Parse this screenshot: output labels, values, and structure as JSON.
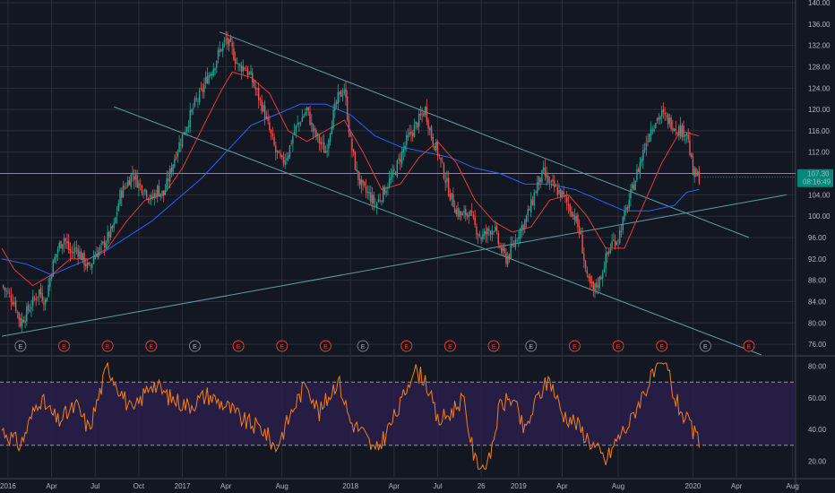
{
  "chart_data": [
    {
      "type": "candlestick",
      "panel": "price",
      "y_ticks": [
        76,
        80,
        84,
        88,
        92,
        96,
        100,
        104,
        108,
        112,
        116,
        120,
        124,
        128,
        132,
        136,
        140
      ],
      "y_tick_labels": [
        "76.00",
        "80.00",
        "84.00",
        "88.00",
        "92.00",
        "96.00",
        "100.00",
        "104.00",
        "108.00",
        "112.00",
        "116.00",
        "120.00",
        "124.00",
        "128.00",
        "132.00",
        "136.00",
        "140.00"
      ],
      "ylim": [
        74,
        140.5
      ],
      "current_price_label": "107.30",
      "countdown_label": "08:16:49",
      "current_price": 107.3,
      "close_path": [
        [
          0,
          87
        ],
        [
          2,
          84
        ],
        [
          3,
          80
        ],
        [
          4,
          82
        ],
        [
          5,
          84
        ],
        [
          6,
          86
        ],
        [
          7,
          84
        ],
        [
          8,
          90
        ],
        [
          9,
          94
        ],
        [
          10,
          96
        ],
        [
          11,
          93
        ],
        [
          12,
          94
        ],
        [
          13,
          92
        ],
        [
          14,
          90
        ],
        [
          15,
          93
        ],
        [
          16,
          94
        ],
        [
          17,
          96
        ],
        [
          18,
          98
        ],
        [
          19,
          104
        ],
        [
          20,
          106
        ],
        [
          21,
          108
        ],
        [
          22,
          106
        ],
        [
          23,
          105
        ],
        [
          24,
          103
        ],
        [
          25,
          105
        ],
        [
          26,
          104
        ],
        [
          27,
          108
        ],
        [
          28,
          112
        ],
        [
          29,
          115
        ],
        [
          30,
          118
        ],
        [
          31,
          121
        ],
        [
          32,
          123
        ],
        [
          33,
          126
        ],
        [
          34,
          128
        ],
        [
          35,
          131
        ],
        [
          36,
          133
        ],
        [
          37,
          131
        ],
        [
          38,
          128
        ],
        [
          39,
          128
        ],
        [
          40,
          126
        ],
        [
          41,
          123
        ],
        [
          42,
          120
        ],
        [
          43,
          116
        ],
        [
          44,
          112
        ],
        [
          45,
          110
        ],
        [
          46,
          112
        ],
        [
          47,
          116
        ],
        [
          48,
          118
        ],
        [
          49,
          120
        ],
        [
          50,
          116
        ],
        [
          51,
          114
        ],
        [
          52,
          112
        ],
        [
          53,
          118
        ],
        [
          54,
          122
        ],
        [
          55,
          124
        ],
        [
          56,
          114
        ],
        [
          57,
          108
        ],
        [
          58,
          105
        ],
        [
          59,
          104
        ],
        [
          60,
          102
        ],
        [
          61,
          104
        ],
        [
          62,
          106
        ],
        [
          63,
          108
        ],
        [
          64,
          111
        ],
        [
          65,
          114
        ],
        [
          66,
          116
        ],
        [
          67,
          118
        ],
        [
          68,
          120
        ],
        [
          69,
          115
        ],
        [
          70,
          112
        ],
        [
          71,
          108
        ],
        [
          72,
          104
        ],
        [
          73,
          101
        ],
        [
          74,
          100
        ],
        [
          75,
          101
        ],
        [
          76,
          98
        ],
        [
          77,
          96
        ],
        [
          78,
          97
        ],
        [
          79,
          98
        ],
        [
          80,
          94
        ],
        [
          81,
          92
        ],
        [
          82,
          94
        ],
        [
          83,
          97
        ],
        [
          84,
          99
        ],
        [
          85,
          102
        ],
        [
          86,
          106
        ],
        [
          87,
          108
        ],
        [
          88,
          106
        ],
        [
          89,
          105
        ],
        [
          90,
          104
        ],
        [
          91,
          102
        ],
        [
          92,
          100
        ],
        [
          93,
          96
        ],
        [
          94,
          88
        ],
        [
          95,
          86
        ],
        [
          96,
          88
        ],
        [
          97,
          92
        ],
        [
          98,
          95
        ],
        [
          99,
          96
        ],
        [
          100,
          100
        ],
        [
          101,
          104
        ],
        [
          102,
          108
        ],
        [
          103,
          112
        ],
        [
          104,
          116
        ],
        [
          105,
          118
        ],
        [
          106,
          119
        ],
        [
          107,
          118
        ],
        [
          108,
          117
        ],
        [
          109,
          116
        ],
        [
          110,
          116
        ],
        [
          111,
          108
        ],
        [
          112,
          107.3
        ]
      ],
      "ma_red_path": [
        [
          0,
          94
        ],
        [
          2,
          90
        ],
        [
          5,
          87
        ],
        [
          8,
          89
        ],
        [
          11,
          92
        ],
        [
          14,
          92
        ],
        [
          17,
          94
        ],
        [
          20,
          99
        ],
        [
          23,
          103
        ],
        [
          26,
          104
        ],
        [
          29,
          109
        ],
        [
          32,
          116
        ],
        [
          35,
          123
        ],
        [
          37,
          127
        ],
        [
          40,
          126
        ],
        [
          43,
          123
        ],
        [
          46,
          116
        ],
        [
          49,
          114
        ],
        [
          52,
          116
        ],
        [
          55,
          118
        ],
        [
          58,
          112
        ],
        [
          61,
          105
        ],
        [
          64,
          106
        ],
        [
          67,
          111
        ],
        [
          70,
          114
        ],
        [
          73,
          110
        ],
        [
          76,
          103
        ],
        [
          79,
          99
        ],
        [
          82,
          97
        ],
        [
          85,
          98
        ],
        [
          88,
          103
        ],
        [
          91,
          104
        ],
        [
          94,
          100
        ],
        [
          97,
          94
        ],
        [
          100,
          94
        ],
        [
          103,
          102
        ],
        [
          106,
          110
        ],
        [
          109,
          116
        ],
        [
          112,
          115
        ]
      ],
      "ma_blue_path": [
        [
          0,
          92
        ],
        [
          4,
          91
        ],
        [
          8,
          89
        ],
        [
          12,
          91
        ],
        [
          16,
          93
        ],
        [
          20,
          96
        ],
        [
          24,
          99
        ],
        [
          28,
          103
        ],
        [
          32,
          107
        ],
        [
          36,
          112
        ],
        [
          40,
          117
        ],
        [
          44,
          119
        ],
        [
          48,
          121
        ],
        [
          52,
          121
        ],
        [
          56,
          119
        ],
        [
          60,
          115
        ],
        [
          64,
          113
        ],
        [
          68,
          112
        ],
        [
          72,
          111
        ],
        [
          76,
          109
        ],
        [
          80,
          108
        ],
        [
          84,
          106
        ],
        [
          88,
          106
        ],
        [
          92,
          105
        ],
        [
          96,
          103
        ],
        [
          100,
          101
        ],
        [
          104,
          101
        ],
        [
          108,
          102
        ],
        [
          110,
          104.5
        ],
        [
          112,
          105
        ]
      ],
      "trendlines": [
        {
          "from": [
            35,
            134.5
          ],
          "to": [
            120,
            96
          ],
          "color": "#5d9da6"
        },
        {
          "from": [
            18,
            120.5
          ],
          "to": [
            122,
            74
          ],
          "color": "#5d9da6"
        },
        {
          "from": [
            0,
            77.5
          ],
          "to": [
            126,
            104
          ],
          "color": "#5d9da6"
        }
      ],
      "horizontal_line": 108,
      "earnings_markers": [
        "E",
        "E",
        "E",
        "E",
        "E",
        "E",
        "E",
        "E",
        "E",
        "E",
        "E",
        "E",
        "E",
        "E",
        "E",
        "E",
        "E",
        "E"
      ],
      "earnings_x": [
        3,
        10,
        17,
        24,
        31,
        38,
        45,
        52,
        58,
        65,
        72,
        79,
        85,
        92,
        99,
        106,
        113,
        120
      ],
      "earnings_reported": [
        false,
        true,
        true,
        true,
        false,
        true,
        true,
        true,
        false,
        true,
        true,
        true,
        false,
        true,
        true,
        true,
        false,
        true
      ]
    },
    {
      "type": "line",
      "panel": "rsi",
      "y_ticks": [
        20,
        40,
        60,
        80
      ],
      "y_tick_labels": [
        "20.00",
        "40.00",
        "60.00",
        "80.00"
      ],
      "ylim": [
        10,
        86
      ],
      "band": [
        30,
        70
      ],
      "mid": 50,
      "rsi_anchor_points": [
        [
          0,
          40
        ],
        [
          3,
          30
        ],
        [
          6,
          60
        ],
        [
          9,
          45
        ],
        [
          12,
          55
        ],
        [
          14,
          40
        ],
        [
          17,
          80
        ],
        [
          19,
          65
        ],
        [
          21,
          50
        ],
        [
          24,
          70
        ],
        [
          27,
          60
        ],
        [
          30,
          55
        ],
        [
          33,
          62
        ],
        [
          36,
          55
        ],
        [
          39,
          45
        ],
        [
          42,
          40
        ],
        [
          44,
          28
        ],
        [
          47,
          55
        ],
        [
          49,
          70
        ],
        [
          51,
          50
        ],
        [
          54,
          72
        ],
        [
          56,
          45
        ],
        [
          58,
          38
        ],
        [
          60,
          25
        ],
        [
          62,
          40
        ],
        [
          64,
          55
        ],
        [
          66,
          78
        ],
        [
          68,
          72
        ],
        [
          70,
          45
        ],
        [
          72,
          50
        ],
        [
          74,
          60
        ],
        [
          76,
          20
        ],
        [
          78,
          15
        ],
        [
          80,
          55
        ],
        [
          82,
          60
        ],
        [
          84,
          38
        ],
        [
          86,
          60
        ],
        [
          88,
          72
        ],
        [
          90,
          50
        ],
        [
          92,
          45
        ],
        [
          94,
          35
        ],
        [
          96,
          25
        ],
        [
          97,
          20
        ],
        [
          99,
          35
        ],
        [
          101,
          45
        ],
        [
          102,
          55
        ],
        [
          104,
          70
        ],
        [
          106,
          82
        ],
        [
          107,
          78
        ],
        [
          108,
          60
        ],
        [
          110,
          45
        ],
        [
          112,
          32
        ]
      ]
    }
  ],
  "x_axis": {
    "labels": [
      "2016",
      "Apr",
      "Jul",
      "Oct",
      "2017",
      "Apr",
      "Aug",
      "2018",
      "Apr",
      "Jul",
      "26",
      "2019",
      "Apr",
      "Aug",
      "2020",
      "Apr",
      "Aug"
    ],
    "positions": [
      1,
      8,
      15,
      22,
      29,
      36,
      45,
      56,
      63,
      70,
      77,
      83,
      90,
      99,
      111,
      118,
      127
    ]
  },
  "colors": {
    "background": "#131722",
    "grid": "#2a2e39",
    "up": "#26a69a",
    "down": "#ef5350",
    "ma_red": "#e53935",
    "ma_blue": "#2962ff",
    "trendline": "#5d9da6",
    "rsi_line": "#f57f17",
    "rsi_band": "#2a1f4a",
    "earnings_red": "#e53935"
  }
}
